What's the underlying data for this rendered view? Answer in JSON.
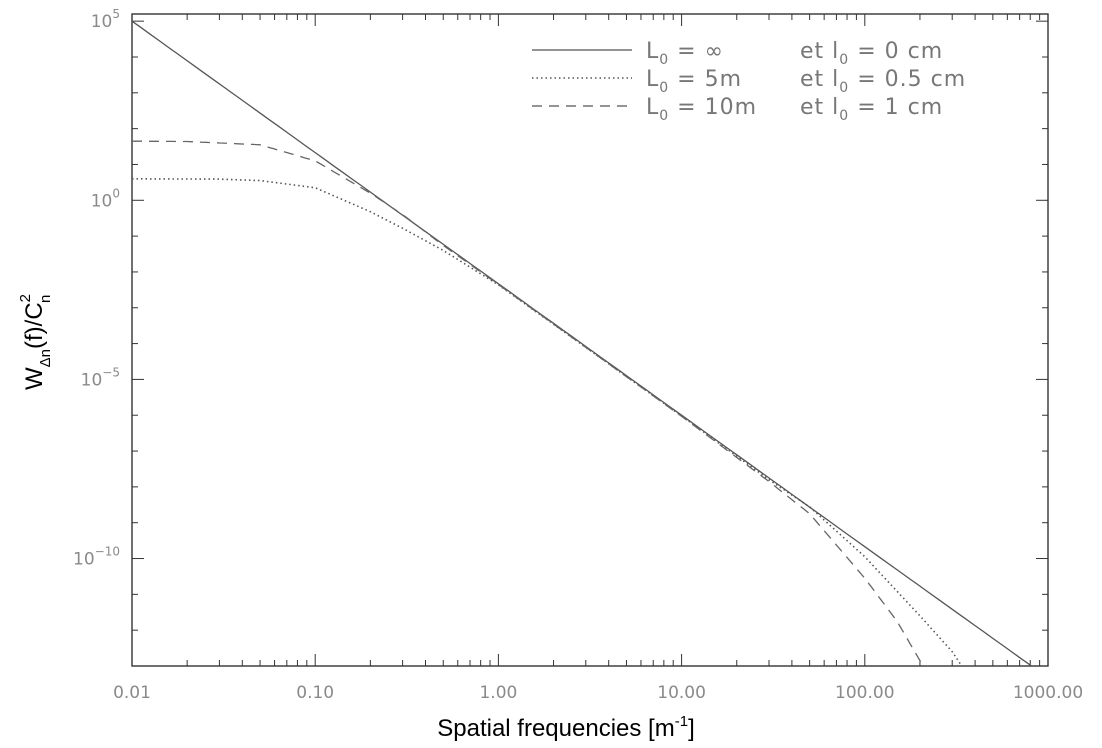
{
  "chart_data": {
    "type": "line",
    "x_scale": "log",
    "y_scale": "log",
    "xlim": [
      0.01,
      1000
    ],
    "ylim_log10": [
      -13,
      5.2
    ],
    "grid": false,
    "legend_position": "top-right",
    "xlabel": {
      "main": "Spatial frequencies [m",
      "sup": "-1",
      "end": "]"
    },
    "ylabel": {
      "w": "W",
      "w_sub": "Δn",
      "mid": "(f)/C",
      "c_sup": "2",
      "c_sub": "n"
    },
    "x_ticks": [
      {
        "value": 0.01,
        "label": "0.01"
      },
      {
        "value": 0.1,
        "label": "0.10"
      },
      {
        "value": 1,
        "label": "1.00"
      },
      {
        "value": 10,
        "label": "10.00"
      },
      {
        "value": 100,
        "label": "100.00"
      },
      {
        "value": 1000,
        "label": "1000.00"
      }
    ],
    "y_ticks": [
      {
        "exp": 0,
        "base": "10",
        "sup": "0"
      },
      {
        "exp": -5,
        "base": "10",
        "sup": "−5"
      },
      {
        "exp": -10,
        "base": "10",
        "sup": "−10"
      },
      {
        "exp": 5,
        "base": "10",
        "sup": "5"
      }
    ],
    "series": [
      {
        "style": "solid",
        "legend": {
          "L": "L",
          "L_sub": "0",
          "L_val": " = ∞",
          "et": "et",
          "l": "l",
          "l_sub": "0",
          "l_val": " = 0 cm"
        },
        "x": [
          0.01,
          0.1,
          1,
          10,
          100,
          1000
        ],
        "y_log10": [
          5.0,
          1.33,
          -2.33,
          -6.0,
          -9.67,
          -13.33
        ]
      },
      {
        "style": "dotted",
        "legend": {
          "L": "L",
          "L_sub": "0",
          "L_val": " = 5m",
          "et": "et",
          "l": "l",
          "l_sub": "0",
          "l_val": " = 0.5 cm"
        },
        "x": [
          0.01,
          0.03,
          0.05,
          0.1,
          0.2,
          0.3,
          0.5,
          1,
          10,
          30,
          50,
          100,
          200,
          300,
          370
        ],
        "y_log10": [
          0.6,
          0.59,
          0.55,
          0.35,
          -0.32,
          -0.78,
          -1.4,
          -2.36,
          -6.02,
          -7.8,
          -8.56,
          -9.95,
          -11.6,
          -12.6,
          -13.3
        ]
      },
      {
        "style": "dashed",
        "legend": {
          "L": "L",
          "L_sub": "0",
          "L_val": " = 10m",
          "et": "et",
          "l": "l",
          "l_sub": "0",
          "l_val": " = 1 cm"
        },
        "x": [
          0.01,
          0.02,
          0.05,
          0.1,
          0.2,
          0.3,
          0.5,
          1,
          10,
          30,
          50,
          100,
          150,
          200,
          230
        ],
        "y_log10": [
          1.65,
          1.64,
          1.55,
          1.1,
          0.2,
          -0.4,
          -1.26,
          -2.35,
          -6.03,
          -7.85,
          -8.75,
          -10.55,
          -11.75,
          -12.85,
          -13.4
        ]
      }
    ]
  }
}
